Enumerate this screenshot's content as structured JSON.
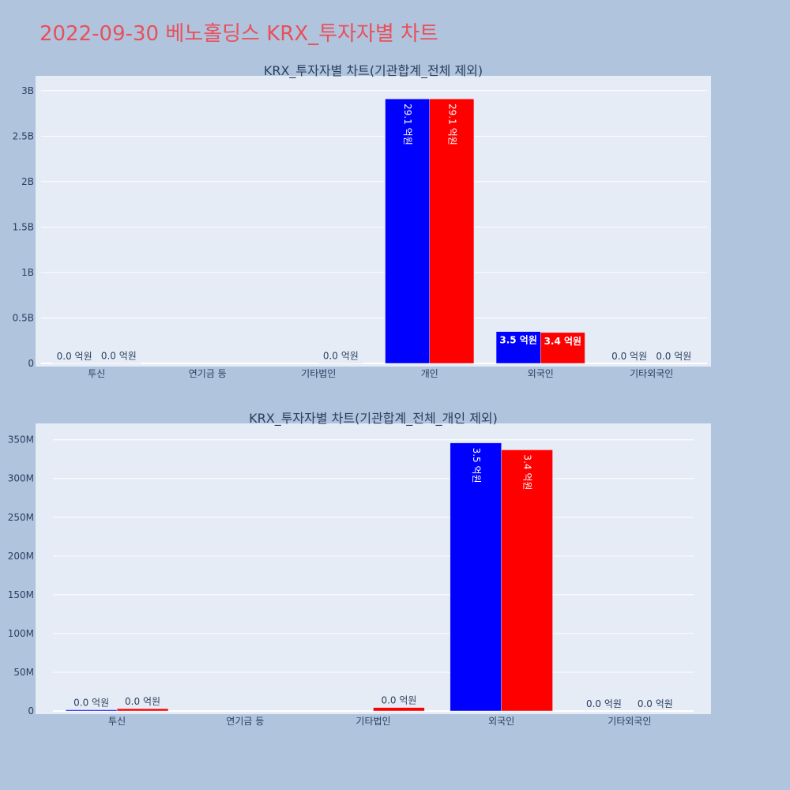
{
  "title": "2022-09-30 베노홀딩스 KRX_투자자별 차트",
  "chart_data": [
    {
      "type": "bar",
      "title": "KRX_투자자별 차트(기관합계_전체 제외)",
      "categories": [
        "투신",
        "연기금 등",
        "기타법인",
        "개인",
        "외국인",
        "기타외국인"
      ],
      "series": [
        {
          "color": "#0000ff",
          "values": [
            1500000,
            0,
            0,
            2910000000,
            350000000,
            0
          ],
          "labels": [
            "0.0 억원",
            "",
            "",
            "29.1 억원",
            "3.5 억원",
            "0.0 억원"
          ]
        },
        {
          "color": "#ff0000",
          "values": [
            3000000,
            0,
            4500000,
            2910000000,
            340000000,
            0
          ],
          "labels": [
            "0.0 억원",
            "",
            "0.0 억원",
            "29.1 억원",
            "3.4 억원",
            "0.0 억원"
          ]
        }
      ],
      "ylim": [
        0,
        3120000000
      ],
      "yticks": [
        0,
        500000000,
        1000000000,
        1500000000,
        2000000000,
        2500000000,
        3000000000
      ],
      "yticklabels": [
        "0",
        "0.5B",
        "1B",
        "1.5B",
        "2B",
        "2.5B",
        "3B"
      ],
      "grid": true,
      "bar_colors": {
        "series1": "#0000ff",
        "series2": "#ff0000"
      }
    },
    {
      "type": "bar",
      "title": "KRX_투자자별 차트(기관합계_전체_개인 제외)",
      "categories": [
        "투신",
        "연기금 등",
        "기타법인",
        "외국인",
        "기타외국인"
      ],
      "series": [
        {
          "color": "#0000ff",
          "values": [
            1500000,
            0,
            0,
            346000000,
            0
          ],
          "labels": [
            "0.0 억원",
            "",
            "",
            "3.5 억원",
            "0.0 억원"
          ]
        },
        {
          "color": "#ff0000",
          "values": [
            3000000,
            0,
            4500000,
            337000000,
            0
          ],
          "labels": [
            "0.0 억원",
            "",
            "0.0 억원",
            "3.4 억원",
            "0.0 억원"
          ]
        }
      ],
      "ylim": [
        0,
        366000000
      ],
      "yticks": [
        0,
        50000000,
        100000000,
        150000000,
        200000000,
        250000000,
        300000000,
        350000000
      ],
      "yticklabels": [
        "0",
        "50M",
        "100M",
        "150M",
        "200M",
        "250M",
        "300M",
        "350M"
      ],
      "grid": true
    }
  ]
}
